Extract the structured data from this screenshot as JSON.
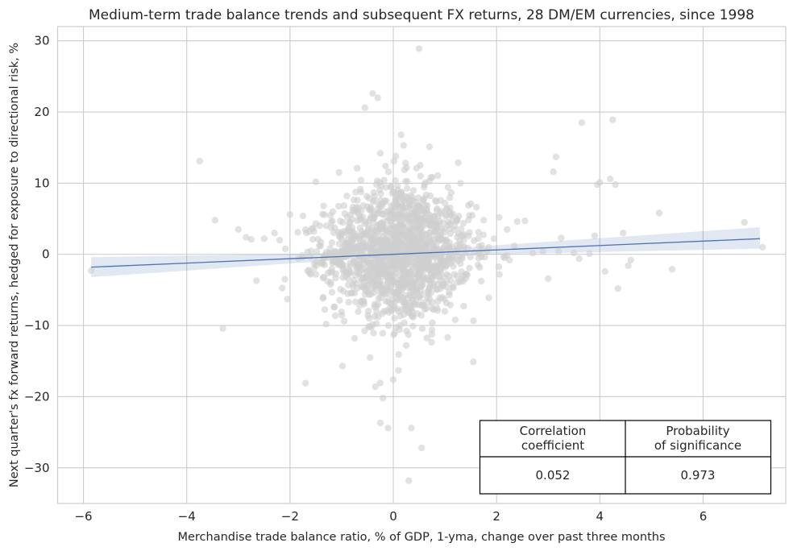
{
  "chart_data": {
    "type": "scatter",
    "title": "Medium-term trade balance trends and subsequent FX returns, 28 DM/EM currencies, since 1998",
    "xlabel": "Merchandise trade balance ratio, % of GDP, 1-yma, change over past three months",
    "ylabel": "Next quarter's fx forward returns, hedged for exposure to directional risk, %",
    "xlim": [
      -6.5,
      7.6
    ],
    "ylim": [
      -35,
      32
    ],
    "xticks": [
      -6,
      -4,
      -2,
      0,
      2,
      4,
      6
    ],
    "xtick_labels": [
      "−6",
      "−4",
      "−2",
      "0",
      "2",
      "4",
      "6"
    ],
    "yticks": [
      -30,
      -20,
      -10,
      0,
      10,
      20,
      30
    ],
    "ytick_labels": [
      "−30",
      "−20",
      "−10",
      "0",
      "10",
      "20",
      "30"
    ],
    "grid": true,
    "point_color": "#cfcfcf",
    "fit_color": "#4c72b0",
    "regression_line": {
      "x": [
        -5.85,
        7.1
      ],
      "y": [
        -1.8,
        2.2
      ]
    },
    "confidence_band": {
      "x": [
        -5.85,
        0,
        7.1
      ],
      "lower": [
        -3.2,
        -0.3,
        0.8
      ],
      "upper": [
        -0.4,
        0.3,
        3.8
      ]
    },
    "points": [
      [
        -5.85,
        -2.3
      ],
      [
        -3.75,
        13.1
      ],
      [
        -3.45,
        4.8
      ],
      [
        -3.3,
        -10.4
      ],
      [
        -3.0,
        3.5
      ],
      [
        -2.85,
        2.4
      ],
      [
        -2.75,
        2.1
      ],
      [
        -2.65,
        -3.7
      ],
      [
        -2.5,
        2.2
      ],
      [
        -2.3,
        3.0
      ],
      [
        -2.2,
        2.0
      ],
      [
        -2.1,
        -3.5
      ],
      [
        -2.05,
        -6.3
      ],
      [
        -2.0,
        5.6
      ],
      [
        -1.85,
        3.1
      ],
      [
        -1.75,
        5.4
      ],
      [
        -1.7,
        -18.1
      ],
      [
        -1.6,
        -2.8
      ],
      [
        -1.5,
        10.2
      ],
      [
        -1.35,
        6.8
      ],
      [
        -1.3,
        -9.8
      ],
      [
        -1.2,
        4.5
      ],
      [
        -1.15,
        -7.4
      ],
      [
        -1.05,
        11.5
      ],
      [
        -0.95,
        -9.4
      ],
      [
        -0.9,
        8.2
      ],
      [
        -0.85,
        3.3
      ],
      [
        -0.75,
        -11.8
      ],
      [
        -0.7,
        12.1
      ],
      [
        -0.65,
        5.4
      ],
      [
        -0.6,
        -3.6
      ],
      [
        -0.55,
        20.6
      ],
      [
        -0.45,
        -14.5
      ],
      [
        -0.4,
        22.6
      ],
      [
        -0.35,
        -18.6
      ],
      [
        -0.3,
        22.0
      ],
      [
        -0.25,
        14.2
      ],
      [
        -0.25,
        -23.7
      ],
      [
        -0.2,
        -20.2
      ],
      [
        -0.15,
        12.4
      ],
      [
        -0.1,
        -24.4
      ],
      [
        -0.05,
        9.5
      ],
      [
        0.0,
        -17.6
      ],
      [
        0.05,
        13.8
      ],
      [
        0.1,
        -16.3
      ],
      [
        0.15,
        16.8
      ],
      [
        0.2,
        15.3
      ],
      [
        0.25,
        -12.8
      ],
      [
        0.3,
        -31.8
      ],
      [
        0.35,
        -24.4
      ],
      [
        0.45,
        12.1
      ],
      [
        0.5,
        28.9
      ],
      [
        0.55,
        -27.2
      ],
      [
        0.6,
        9.8
      ],
      [
        0.7,
        15.1
      ],
      [
        0.75,
        -10.6
      ],
      [
        0.85,
        6.4
      ],
      [
        0.9,
        -6.1
      ],
      [
        1.0,
        7.2
      ],
      [
        1.1,
        4.3
      ],
      [
        1.2,
        -9.2
      ],
      [
        1.3,
        10.0
      ],
      [
        1.4,
        -3.4
      ],
      [
        1.5,
        7.1
      ],
      [
        1.55,
        -15.1
      ],
      [
        1.65,
        3.1
      ],
      [
        1.75,
        4.8
      ],
      [
        1.85,
        -6.1
      ],
      [
        1.95,
        2.2
      ],
      [
        2.05,
        5.2
      ],
      [
        2.15,
        -0.5
      ],
      [
        2.25,
        -0.8
      ],
      [
        2.4,
        4.6
      ],
      [
        2.55,
        4.7
      ],
      [
        2.7,
        0.2
      ],
      [
        2.9,
        0.4
      ],
      [
        3.0,
        -3.4
      ],
      [
        3.1,
        11.6
      ],
      [
        3.15,
        13.7
      ],
      [
        3.2,
        0.4
      ],
      [
        3.25,
        2.3
      ],
      [
        3.5,
        0.2
      ],
      [
        3.6,
        -0.6
      ],
      [
        3.65,
        18.5
      ],
      [
        3.8,
        0.1
      ],
      [
        3.9,
        2.6
      ],
      [
        3.95,
        9.8
      ],
      [
        4.0,
        10.1
      ],
      [
        4.1,
        -2.4
      ],
      [
        4.2,
        10.6
      ],
      [
        4.25,
        18.9
      ],
      [
        4.3,
        9.8
      ],
      [
        4.35,
        -4.8
      ],
      [
        4.45,
        3.0
      ],
      [
        4.6,
        -0.8
      ],
      [
        4.55,
        -1.6
      ],
      [
        5.15,
        5.8
      ],
      [
        5.4,
        -2.1
      ],
      [
        6.8,
        4.5
      ],
      [
        7.15,
        1.0
      ]
    ],
    "dense_cloud": {
      "center": [
        0.1,
        0.2
      ],
      "sd": [
        0.7,
        5.2
      ],
      "n": 1500
    },
    "stats_table": {
      "headers": [
        [
          "Correlation",
          "coefficient"
        ],
        [
          "Probability",
          "of significance"
        ]
      ],
      "values": [
        "0.052",
        "0.973"
      ]
    }
  }
}
